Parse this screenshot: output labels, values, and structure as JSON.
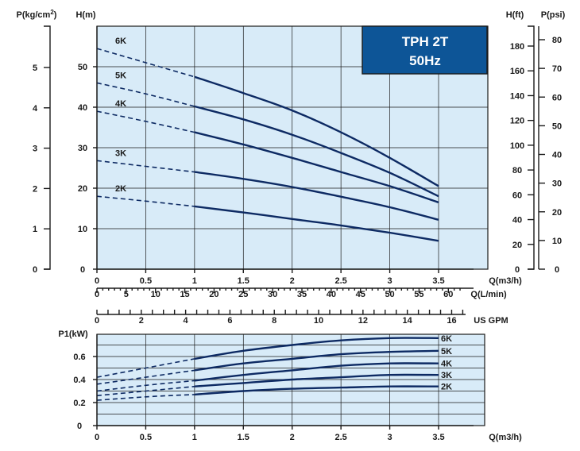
{
  "chart_data": [
    {
      "name": "head-chart",
      "type": "line",
      "badge": {
        "line1": "TPH 2T",
        "line2": "50Hz",
        "color": "#0d5597"
      },
      "plot_background": "#d8ebf8",
      "curve_color": "#0d2a63",
      "x": {
        "label": "Q(m3/h)",
        "range": [
          0,
          3.5
        ],
        "ticks": [
          "0",
          "0.5",
          "1",
          "1.5",
          "2",
          "2.5",
          "3",
          "3.5"
        ]
      },
      "x2": {
        "label": "Q(L/min)",
        "range_data": [
          0,
          58.33
        ],
        "ticks": [
          0,
          5,
          10,
          15,
          20,
          25,
          30,
          35,
          40,
          45,
          50,
          55,
          60
        ]
      },
      "x3": {
        "label": "US GPM",
        "range_data": [
          0,
          15.41
        ],
        "ticks": [
          0,
          2,
          4,
          6,
          8,
          10,
          12,
          14,
          16
        ]
      },
      "y_left_outer": {
        "label": "P(kg/cm2)",
        "range": [
          0,
          5.5
        ],
        "ticks": [
          0,
          1,
          2,
          3,
          4,
          5
        ]
      },
      "y_left": {
        "label": "H(m)",
        "range": [
          0,
          60
        ],
        "ticks": [
          0,
          10,
          20,
          30,
          40,
          50
        ]
      },
      "y_right_inner": {
        "label": "H(ft)",
        "range": [
          0,
          196.85
        ],
        "ticks": [
          0,
          20,
          40,
          60,
          80,
          100,
          120,
          140,
          160,
          180
        ]
      },
      "y_right_outer": {
        "label": "P(psi)",
        "range": [
          0,
          85.3
        ],
        "ticks": [
          0,
          10,
          20,
          30,
          40,
          50,
          60,
          70,
          80
        ]
      },
      "grid": true,
      "dashed_until_q": 1.0,
      "series": [
        {
          "name": "6K",
          "x": [
            0,
            0.5,
            1,
            1.5,
            2,
            2.5,
            3,
            3.5
          ],
          "y": [
            54.5,
            51,
            47.5,
            43.5,
            39.2,
            33.8,
            27.5,
            20.5
          ]
        },
        {
          "name": "5K",
          "x": [
            0,
            0.5,
            1,
            1.5,
            2,
            2.5,
            3,
            3.5
          ],
          "y": [
            46,
            43.3,
            40.2,
            37,
            33.2,
            28.7,
            23.8,
            18
          ]
        },
        {
          "name": "4K",
          "x": [
            0,
            0.5,
            1,
            1.5,
            2,
            2.5,
            3,
            3.5
          ],
          "y": [
            39,
            36.5,
            33.8,
            30.8,
            27.5,
            24,
            20.5,
            16.5
          ]
        },
        {
          "name": "3K",
          "x": [
            0,
            0.5,
            1,
            1.5,
            2,
            2.5,
            3,
            3.5
          ],
          "y": [
            26.8,
            25.4,
            24,
            22.3,
            20.3,
            17.9,
            15.3,
            12.2
          ]
        },
        {
          "name": "2K",
          "x": [
            0,
            0.5,
            1,
            1.5,
            2,
            2.5,
            3,
            3.5
          ],
          "y": [
            18,
            16.8,
            15.5,
            14,
            12.4,
            10.8,
            9,
            7
          ]
        }
      ]
    },
    {
      "name": "power-chart",
      "type": "line",
      "plot_background": "#d8ebf8",
      "curve_color": "#0d2a63",
      "x": {
        "label": "Q(m3/h)",
        "range": [
          0,
          3.5
        ],
        "ticks": [
          "0",
          "0.5",
          "1",
          "1.5",
          "2",
          "2.5",
          "3",
          "3.5"
        ]
      },
      "y": {
        "label": "P1(kW)",
        "range": [
          0,
          0.8
        ],
        "ticks": [
          "0",
          "0.2",
          "0.4",
          "0.6"
        ]
      },
      "grid": true,
      "dashed_until_q": 1.0,
      "series": [
        {
          "name": "6K",
          "x": [
            0,
            0.5,
            1,
            1.5,
            2,
            2.5,
            3,
            3.5
          ],
          "y": [
            0.42,
            0.5,
            0.58,
            0.65,
            0.7,
            0.74,
            0.76,
            0.76
          ]
        },
        {
          "name": "5K",
          "x": [
            0,
            0.5,
            1,
            1.5,
            2,
            2.5,
            3,
            3.5
          ],
          "y": [
            0.36,
            0.42,
            0.48,
            0.54,
            0.58,
            0.62,
            0.64,
            0.65
          ]
        },
        {
          "name": "4K",
          "x": [
            0,
            0.5,
            1,
            1.5,
            2,
            2.5,
            3,
            3.5
          ],
          "y": [
            0.3,
            0.35,
            0.39,
            0.44,
            0.48,
            0.52,
            0.54,
            0.54
          ]
        },
        {
          "name": "3K",
          "x": [
            0,
            0.5,
            1,
            1.5,
            2,
            2.5,
            3,
            3.5
          ],
          "y": [
            0.26,
            0.3,
            0.34,
            0.37,
            0.4,
            0.42,
            0.44,
            0.44
          ]
        },
        {
          "name": "2K",
          "x": [
            0,
            0.5,
            1,
            1.5,
            2,
            2.5,
            3,
            3.5
          ],
          "y": [
            0.22,
            0.25,
            0.27,
            0.3,
            0.32,
            0.33,
            0.34,
            0.34
          ]
        }
      ]
    }
  ]
}
